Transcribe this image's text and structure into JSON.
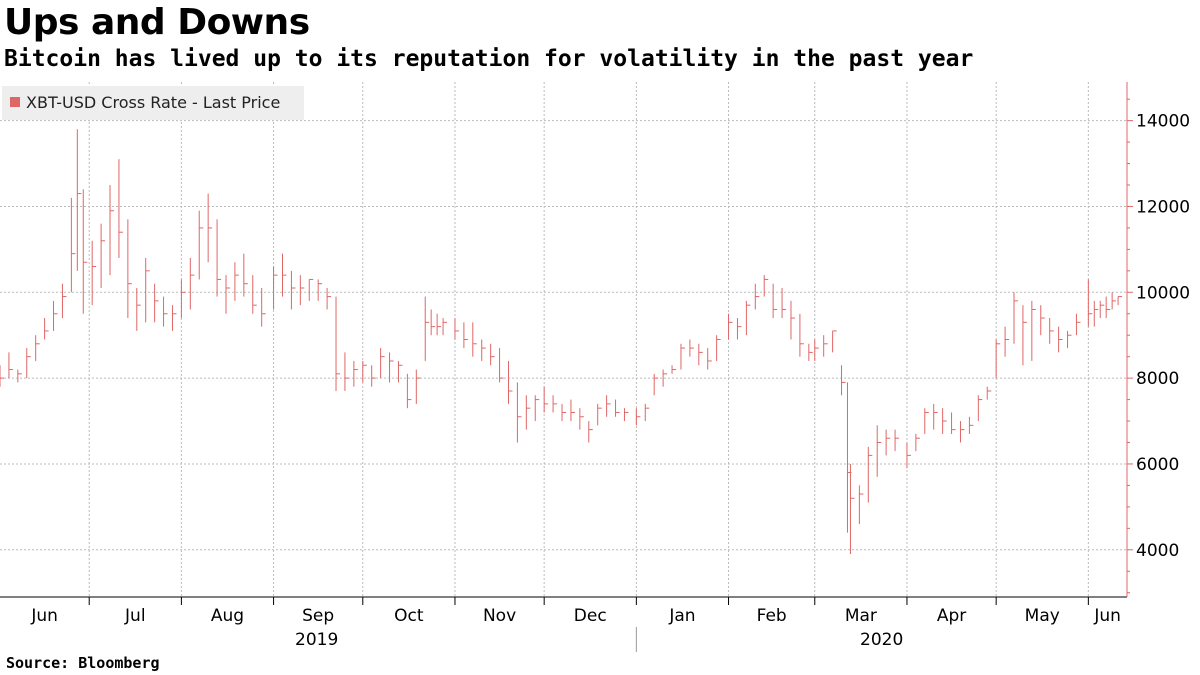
{
  "chart_data": {
    "type": "bar",
    "style": "ohlc",
    "title": "Ups and Downs",
    "subtitle": "Bitcoin has lived up to its reputation for volatility in the past year",
    "legend": {
      "label": "XBT-USD Cross Rate - Last Price",
      "position": "top-left"
    },
    "source": "Source: Bloomberg",
    "series_color": "#e06666",
    "grid": true,
    "ylim": [
      2900,
      14900
    ],
    "y_ticks": [
      4000,
      6000,
      8000,
      10000,
      12000,
      14000
    ],
    "y_tick_labels": [
      "4000",
      "6000",
      "8000",
      "10000",
      "12000",
      "14000"
    ],
    "y_axis_position": "right",
    "x_start": "2019-06-01",
    "x_end": "2020-06-14",
    "month_labels": [
      {
        "date": "2019-06-01",
        "label": "Jun"
      },
      {
        "date": "2019-07-01",
        "label": "Jul"
      },
      {
        "date": "2019-08-01",
        "label": "Aug"
      },
      {
        "date": "2019-09-01",
        "label": "Sep"
      },
      {
        "date": "2019-10-01",
        "label": "Oct"
      },
      {
        "date": "2019-11-01",
        "label": "Nov"
      },
      {
        "date": "2019-12-01",
        "label": "Dec"
      },
      {
        "date": "2020-01-01",
        "label": "Jan"
      },
      {
        "date": "2020-02-01",
        "label": "Feb"
      },
      {
        "date": "2020-03-01",
        "label": "Mar"
      },
      {
        "date": "2020-04-01",
        "label": "Apr"
      },
      {
        "date": "2020-05-01",
        "label": "May"
      },
      {
        "date": "2020-06-01",
        "label": "Jun"
      }
    ],
    "year_labels": [
      {
        "label": "2019",
        "from": "2019-06-01",
        "to": "2019-12-31"
      },
      {
        "label": "2020",
        "from": "2020-01-01",
        "to": "2020-06-14"
      }
    ],
    "x": [
      "2019-06-01",
      "2019-06-04",
      "2019-06-07",
      "2019-06-10",
      "2019-06-13",
      "2019-06-16",
      "2019-06-19",
      "2019-06-22",
      "2019-06-25",
      "2019-06-27",
      "2019-06-29",
      "2019-07-02",
      "2019-07-05",
      "2019-07-08",
      "2019-07-11",
      "2019-07-14",
      "2019-07-17",
      "2019-07-20",
      "2019-07-23",
      "2019-07-26",
      "2019-07-29",
      "2019-08-01",
      "2019-08-04",
      "2019-08-07",
      "2019-08-10",
      "2019-08-13",
      "2019-08-16",
      "2019-08-19",
      "2019-08-22",
      "2019-08-25",
      "2019-08-28",
      "2019-09-01",
      "2019-09-04",
      "2019-09-07",
      "2019-09-10",
      "2019-09-13",
      "2019-09-16",
      "2019-09-19",
      "2019-09-22",
      "2019-09-25",
      "2019-09-28",
      "2019-10-01",
      "2019-10-04",
      "2019-10-07",
      "2019-10-10",
      "2019-10-13",
      "2019-10-16",
      "2019-10-19",
      "2019-10-22",
      "2019-10-24",
      "2019-10-26",
      "2019-10-28",
      "2019-11-01",
      "2019-11-04",
      "2019-11-07",
      "2019-11-10",
      "2019-11-13",
      "2019-11-16",
      "2019-11-19",
      "2019-11-22",
      "2019-11-25",
      "2019-11-28",
      "2019-12-01",
      "2019-12-04",
      "2019-12-07",
      "2019-12-10",
      "2019-12-13",
      "2019-12-16",
      "2019-12-19",
      "2019-12-22",
      "2019-12-25",
      "2019-12-28",
      "2020-01-01",
      "2020-01-04",
      "2020-01-07",
      "2020-01-10",
      "2020-01-13",
      "2020-01-16",
      "2020-01-19",
      "2020-01-22",
      "2020-01-25",
      "2020-01-28",
      "2020-02-01",
      "2020-02-04",
      "2020-02-07",
      "2020-02-10",
      "2020-02-13",
      "2020-02-16",
      "2020-02-19",
      "2020-02-22",
      "2020-02-25",
      "2020-02-28",
      "2020-03-01",
      "2020-03-04",
      "2020-03-07",
      "2020-03-10",
      "2020-03-12",
      "2020-03-13",
      "2020-03-16",
      "2020-03-19",
      "2020-03-22",
      "2020-03-25",
      "2020-03-28",
      "2020-04-01",
      "2020-04-04",
      "2020-04-07",
      "2020-04-10",
      "2020-04-13",
      "2020-04-16",
      "2020-04-19",
      "2020-04-22",
      "2020-04-25",
      "2020-04-28",
      "2020-05-01",
      "2020-05-04",
      "2020-05-07",
      "2020-05-10",
      "2020-05-13",
      "2020-05-16",
      "2020-05-19",
      "2020-05-22",
      "2020-05-25",
      "2020-05-28",
      "2020-06-01",
      "2020-06-03",
      "2020-06-05",
      "2020-06-07",
      "2020-06-09",
      "2020-06-11"
    ],
    "high": [
      8300,
      8600,
      8200,
      8700,
      9000,
      9400,
      9800,
      10200,
      12200,
      13800,
      12400,
      11200,
      11600,
      12500,
      13100,
      11700,
      10100,
      10800,
      10200,
      9900,
      9700,
      10300,
      10800,
      11900,
      12300,
      11700,
      10400,
      10700,
      10900,
      10400,
      10100,
      10600,
      10900,
      10500,
      10400,
      10300,
      10300,
      10100,
      9900,
      8600,
      8400,
      8400,
      8300,
      8700,
      8600,
      8400,
      8100,
      8200,
      9900,
      9600,
      9500,
      9400,
      9400,
      9300,
      9300,
      8900,
      8800,
      8700,
      8400,
      7900,
      7600,
      7600,
      7800,
      7600,
      7400,
      7500,
      7300,
      7000,
      7400,
      7600,
      7500,
      7300,
      7300,
      7400,
      8100,
      8200,
      8300,
      8800,
      8900,
      8800,
      8700,
      9000,
      9500,
      9400,
      9800,
      10200,
      10400,
      10200,
      10100,
      9800,
      9500,
      8800,
      8900,
      9000,
      9100,
      8300,
      7900,
      6000,
      5500,
      6400,
      6900,
      6800,
      6800,
      6500,
      6700,
      7300,
      7400,
      7300,
      7200,
      7000,
      7100,
      7600,
      7800,
      8900,
      9200,
      10000,
      9700,
      9800,
      9700,
      9400,
      9200,
      9100,
      9500,
      10300,
      9800,
      9800,
      9900,
      10000,
      9900
    ],
    "low": [
      7800,
      8000,
      7900,
      8000,
      8400,
      8900,
      9100,
      9400,
      10000,
      10500,
      9500,
      9700,
      10100,
      10400,
      10800,
      9400,
      9100,
      9300,
      9300,
      9200,
      9100,
      9400,
      9600,
      10300,
      10700,
      9900,
      9500,
      9800,
      9900,
      9500,
      9200,
      9600,
      9900,
      9600,
      9700,
      9800,
      9800,
      9600,
      7700,
      7700,
      7800,
      7900,
      7800,
      8000,
      7900,
      7900,
      7300,
      7400,
      8400,
      9000,
      9000,
      9000,
      8900,
      8700,
      8500,
      8400,
      8300,
      7900,
      7400,
      6500,
      6800,
      7000,
      7200,
      7200,
      7000,
      7000,
      6800,
      6500,
      6900,
      7100,
      7100,
      7000,
      6900,
      7000,
      7600,
      7800,
      8100,
      8200,
      8500,
      8300,
      8200,
      8400,
      8900,
      8900,
      9000,
      9600,
      9900,
      9400,
      9400,
      8900,
      8500,
      8400,
      8400,
      8500,
      8600,
      7600,
      4400,
      3900,
      4600,
      5100,
      5700,
      6200,
      6300,
      5900,
      6300,
      6700,
      6800,
      6700,
      6700,
      6500,
      6700,
      7000,
      7500,
      8000,
      8500,
      8800,
      8300,
      8400,
      9000,
      8800,
      8600,
      8700,
      9000,
      9200,
      9200,
      9400,
      9400,
      9600,
      9700
    ],
    "close": [
      8000,
      8200,
      8100,
      8500,
      8800,
      9100,
      9500,
      9900,
      10900,
      12300,
      10700,
      10600,
      11200,
      11900,
      11400,
      10200,
      9700,
      10500,
      9800,
      9500,
      9500,
      10000,
      10400,
      11500,
      11500,
      10300,
      10100,
      10400,
      10200,
      9700,
      9500,
      10400,
      10400,
      10100,
      10100,
      10300,
      10200,
      9900,
      8100,
      8000,
      8200,
      8300,
      8000,
      8500,
      8400,
      8300,
      7500,
      8000,
      9300,
      9200,
      9200,
      9300,
      9100,
      8900,
      8800,
      8700,
      8500,
      8000,
      7700,
      7100,
      7300,
      7500,
      7400,
      7400,
      7200,
      7200,
      7100,
      6800,
      7300,
      7400,
      7200,
      7200,
      7100,
      7300,
      8000,
      8100,
      8200,
      8700,
      8700,
      8600,
      8400,
      8900,
      9300,
      9200,
      9700,
      9900,
      10300,
      9600,
      9600,
      9400,
      8800,
      8600,
      8700,
      8800,
      9100,
      7900,
      5800,
      5200,
      5300,
      6200,
      6500,
      6600,
      6600,
      6200,
      6600,
      7200,
      7200,
      7000,
      6800,
      6800,
      6900,
      7500,
      7700,
      8800,
      8900,
      9800,
      9300,
      9600,
      9400,
      9100,
      8900,
      9000,
      9300,
      9500,
      9600,
      9700,
      9600,
      9800,
      9900
    ]
  }
}
